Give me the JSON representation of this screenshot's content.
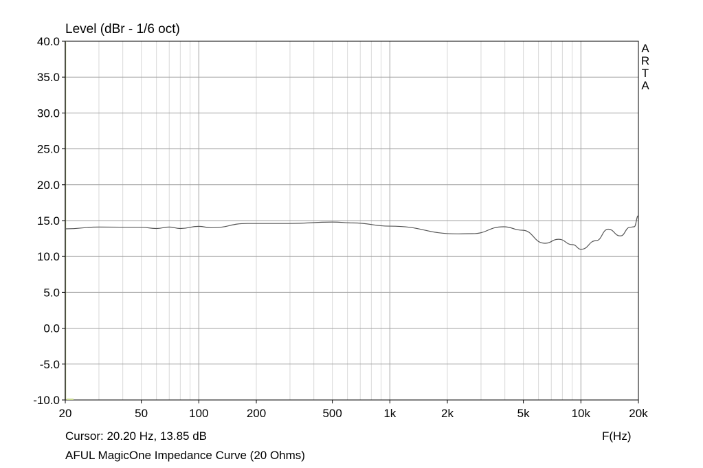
{
  "chart_data": {
    "type": "line",
    "title": "Level (dBr - 1/6 oct)",
    "xlabel": "F(Hz)",
    "ylabel": "",
    "x_scale": "log",
    "xlim": [
      20,
      20000
    ],
    "ylim": [
      -10,
      40
    ],
    "grid": true,
    "y_ticks": [
      "40.0",
      "35.0",
      "30.0",
      "25.0",
      "20.0",
      "15.0",
      "10.0",
      "5.0",
      "0.0",
      "-5.0",
      "-10.0"
    ],
    "x_ticks": [
      {
        "value": 20,
        "label": "20"
      },
      {
        "value": 50,
        "label": "50"
      },
      {
        "value": 100,
        "label": "100"
      },
      {
        "value": 200,
        "label": "200"
      },
      {
        "value": 500,
        "label": "500"
      },
      {
        "value": 1000,
        "label": "1k"
      },
      {
        "value": 2000,
        "label": "2k"
      },
      {
        "value": 5000,
        "label": "5k"
      },
      {
        "value": 10000,
        "label": "10k"
      },
      {
        "value": 20000,
        "label": "20k"
      }
    ],
    "series": [
      {
        "color": "#555555",
        "x": [
          20,
          30,
          50,
          60,
          70,
          80,
          100,
          116,
          180,
          300,
          500,
          640,
          1000,
          2280,
          2700,
          3940,
          4930,
          6480,
          7650,
          9030,
          10050,
          12000,
          13900,
          16100,
          18100,
          19000,
          20000
        ],
        "y": [
          13.85,
          14.1,
          14.07,
          13.9,
          14.1,
          13.9,
          14.2,
          14.0,
          14.6,
          14.6,
          14.8,
          14.68,
          14.23,
          13.15,
          13.18,
          14.14,
          13.66,
          11.84,
          12.4,
          11.65,
          11.0,
          12.2,
          13.8,
          12.87,
          14.07,
          14.14,
          15.7
        ]
      }
    ]
  },
  "watermark": "ARTA",
  "cursor_text": "Cursor: 20.20 Hz, 13.85 dB",
  "caption": "AFUL MagicOne Impedance Curve (20 Ohms)",
  "colors": {
    "grid_major": "#a0a0a0",
    "grid_minor": "#d8d8d8",
    "axis": "#000000",
    "cursor_marker": "#c8d890"
  }
}
